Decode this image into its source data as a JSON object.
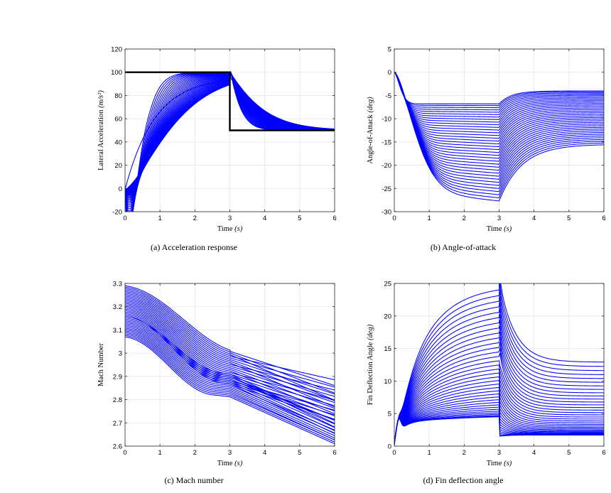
{
  "colors": {
    "series": "#0000ff",
    "reference": "#000000",
    "grid": "#e6e6e6",
    "axes": "#262626"
  },
  "chart_data": [
    {
      "id": "a",
      "type": "line",
      "caption": "(a) Acceleration response",
      "xlabel": "Time ",
      "xunit": "(s)",
      "ylabel": "Lateral Acceleration ",
      "yunit": "(m/s²)",
      "xlim": [
        0,
        6
      ],
      "ylim": [
        -20,
        120
      ],
      "xticks": [
        0,
        1,
        2,
        3,
        4,
        5,
        6
      ],
      "yticks": [
        -20,
        0,
        20,
        40,
        60,
        80,
        100,
        120
      ],
      "grid": true,
      "reference": {
        "x": [
          0,
          3,
          3,
          6
        ],
        "y": [
          100,
          100,
          50,
          50
        ]
      },
      "series_count": 36,
      "description_range": {
        "min_response_t0": -7,
        "peak_overshoot": 108,
        "slowest_at_3s": 96,
        "final": 50
      }
    },
    {
      "id": "b",
      "type": "line",
      "caption": "(b) Angle-of-attack",
      "xlabel": "Time ",
      "xunit": "(s)",
      "ylabel": "Angle-of-Attack ",
      "yunit": "(deg)",
      "xlim": [
        0,
        6
      ],
      "ylim": [
        -30,
        5
      ],
      "xticks": [
        0,
        1,
        2,
        3,
        4,
        5,
        6
      ],
      "yticks": [
        -30,
        -25,
        -20,
        -15,
        -10,
        -5,
        0,
        5
      ],
      "grid": true,
      "series_count": 36,
      "value_at_3s_range": [
        -25.3,
        -6.8
      ],
      "final_value_range": [
        -16.7,
        -4.0
      ]
    },
    {
      "id": "c",
      "type": "line",
      "caption": "(c) Mach number",
      "xlabel": "Time ",
      "xunit": "(s)",
      "ylabel": "Mach Number",
      "yunit": "",
      "xlim": [
        0,
        6
      ],
      "ylim": [
        2.6,
        3.3
      ],
      "xticks": [
        0,
        1,
        2,
        3,
        4,
        5,
        6
      ],
      "yticks": [
        2.6,
        2.7,
        2.8,
        2.9,
        3,
        3.1,
        3.2,
        3.3
      ],
      "grid": true,
      "series_count": 36,
      "initial_value_range": [
        3.07,
        3.29
      ],
      "final_value_range": [
        2.61,
        2.93
      ]
    },
    {
      "id": "d",
      "type": "line",
      "caption": "(d) Fin deflection angle",
      "xlabel": "Time ",
      "xunit": "(s)",
      "ylabel": "Fin Deflection Angle ",
      "yunit": "(deg)",
      "xlim": [
        0,
        6
      ],
      "ylim": [
        0,
        25
      ],
      "xticks": [
        0,
        1,
        2,
        3,
        4,
        5,
        6
      ],
      "yticks": [
        0,
        5,
        10,
        15,
        20,
        25
      ],
      "grid": true,
      "series_count": 36,
      "value_at_3s_range": [
        4.5,
        24
      ],
      "final_value_range": [
        1.7,
        12.9
      ]
    }
  ]
}
